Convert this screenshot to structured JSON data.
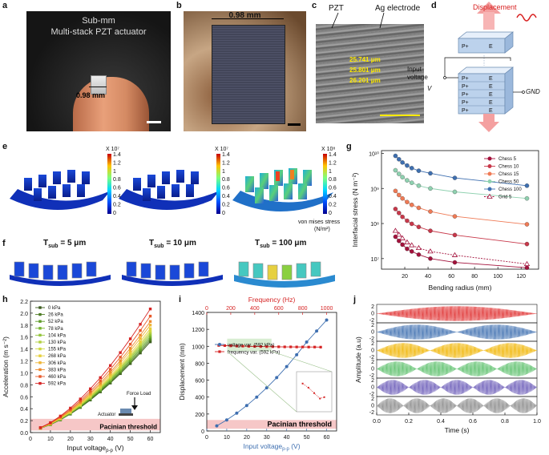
{
  "panels": {
    "a": {
      "label": "a",
      "title_line1": "Sub-mm",
      "title_line2": "Multi-stack PZT actuator",
      "scale": "0.98 mm"
    },
    "b": {
      "label": "b",
      "scale": "0.98 mm"
    },
    "c": {
      "label": "c",
      "pzt": "PZT",
      "ag": "Ag electrode",
      "t1": "25.741 μm",
      "t2": "25.801 μm",
      "t3": "26.201 μm"
    },
    "d": {
      "label": "d",
      "displacement": "Displacement",
      "input_voltage": "Input voltage",
      "v": "V",
      "gnd": "GND",
      "plates": [
        "P+",
        "P+",
        "P+",
        "P+",
        "P+",
        "P+"
      ],
      "e": "E"
    },
    "e": {
      "label": "e",
      "exp1": "X 10⁷",
      "exp2": "X 10⁷",
      "exp3": "X 10⁸",
      "ticks12": [
        "1.4",
        "1.2",
        "1",
        "0.8",
        "0.6",
        "0.4",
        "0.2",
        "0"
      ],
      "ticks3": [
        "1.4",
        "1.2",
        "1",
        "0.8",
        "0.6",
        "0.4",
        "0.2",
        "0"
      ],
      "vm": "von mises stress",
      "unit": "(N/m²)"
    },
    "f": {
      "label": "f",
      "t1": "T",
      "t1s": "sub",
      "t1v": "= 5 μm",
      "t2v": "= 10 μm",
      "t3v": "= 100 μm"
    },
    "g": {
      "label": "g"
    },
    "h": {
      "label": "h",
      "actuator": "Actuator",
      "force": "Force Load",
      "pacinian": "Pacinian threshold"
    },
    "i": {
      "label": "i",
      "pacinian": "Pacinian threshold"
    },
    "j": {
      "label": "j"
    }
  },
  "chart_data": [
    {
      "id": "g",
      "type": "line",
      "ylabel": "Interfacial stress (N m⁻²)",
      "xlabel": "Bending radius (mm)",
      "x": [
        12,
        15,
        18,
        22,
        26,
        32,
        42,
        63,
        125
      ],
      "xlim": [
        0,
        135
      ],
      "xticks": [
        "20",
        "40",
        "60",
        "80",
        "100",
        "120"
      ],
      "xtickvals": [
        20,
        40,
        60,
        80,
        100,
        120
      ],
      "yscale": "log",
      "ylim": [
        5000000,
        12000000000
      ],
      "yticks": [
        "10⁷",
        "10⁸",
        "10⁹",
        "10¹⁰"
      ],
      "ytickvals": [
        10000000,
        100000000,
        1000000000,
        10000000000
      ],
      "series": [
        {
          "name": "Chess 5",
          "color": "#a3123c",
          "values": [
            42000000,
            32000000,
            25000000,
            19000000,
            16000000,
            13000000,
            10000000,
            7800000,
            5500000
          ]
        },
        {
          "name": "Chess 10",
          "color": "#c8384a",
          "values": [
            260000000,
            200000000,
            155000000,
            120000000,
            98000000,
            80000000,
            62000000,
            47000000,
            26000000
          ]
        },
        {
          "name": "Chess 15",
          "color": "#ef7a55",
          "values": [
            850000000,
            650000000,
            520000000,
            410000000,
            340000000,
            280000000,
            220000000,
            160000000,
            95000000
          ]
        },
        {
          "name": "Chess 50",
          "color": "#8fd1b0",
          "values": [
            3300000000,
            2600000000,
            2100000000,
            1700000000,
            1450000000,
            1200000000,
            1000000000,
            800000000,
            520000000
          ]
        },
        {
          "name": "Chess 100",
          "color": "#3e6fb0",
          "values": [
            8500000000,
            6800000000,
            5500000000,
            4500000000,
            3800000000,
            3200000000,
            2700000000,
            2000000000,
            1200000000
          ]
        },
        {
          "name": "Grid 5",
          "color": "#a3123c",
          "dashed": true,
          "values": [
            62000000,
            48000000,
            38000000,
            29000000,
            24000000,
            20000000,
            16000000,
            12500000,
            7000000
          ]
        }
      ]
    },
    {
      "id": "h",
      "type": "line",
      "ylabel": "Acceleration (m s⁻²)",
      "xlabel": "Input voltage",
      "xlabel_sub": "p-p",
      "xlabel_unit": "(V)",
      "x": [
        5,
        10,
        15,
        20,
        25,
        30,
        35,
        40,
        45,
        50,
        55,
        60
      ],
      "xlim": [
        0,
        65
      ],
      "xticks": [
        "0",
        "10",
        "20",
        "30",
        "40",
        "50",
        "60"
      ],
      "xtickvals": [
        0,
        10,
        20,
        30,
        40,
        50,
        60
      ],
      "ylim": [
        0,
        2.2
      ],
      "yticks": [
        "0.0",
        "0.2",
        "0.4",
        "0.6",
        "0.8",
        "1.0",
        "1.2",
        "1.4",
        "1.6",
        "1.8",
        "2.0",
        "2.2"
      ],
      "ytickvals": [
        0,
        0.2,
        0.4,
        0.6,
        0.8,
        1.0,
        1.2,
        1.4,
        1.6,
        1.8,
        2.0,
        2.2
      ],
      "threshold": 0.23,
      "series": [
        {
          "name": "0 kPa",
          "color": "#3a5a1c",
          "k": 1.52
        },
        {
          "name": "26 kPa",
          "color": "#4c7a22",
          "k": 1.55
        },
        {
          "name": "52 kPa",
          "color": "#5e9a28",
          "k": 1.58
        },
        {
          "name": "78 kPa",
          "color": "#76b42e",
          "k": 1.61
        },
        {
          "name": "104 kPa",
          "color": "#93c43a",
          "k": 1.64
        },
        {
          "name": "130 kPa",
          "color": "#b2cf3e",
          "k": 1.67
        },
        {
          "name": "155 kPa",
          "color": "#cfd841",
          "k": 1.7
        },
        {
          "name": "268 kPa",
          "color": "#e6cf3a",
          "k": 1.74
        },
        {
          "name": "306 kPa",
          "color": "#efb534",
          "k": 1.8
        },
        {
          "name": "383 kPa",
          "color": "#ee8a2e",
          "k": 1.86
        },
        {
          "name": "460 kPa",
          "color": "#e85a2a",
          "k": 1.95
        },
        {
          "name": "592 kPa",
          "color": "#d62424",
          "k": 2.07
        }
      ]
    },
    {
      "id": "i",
      "type": "line",
      "ylabel": "Displacement (nm)",
      "xlabel": "Input voltage",
      "xlabel_sub": "p-p",
      "xlabel_unit": "(V)",
      "x2label": "Frequency (Hz)",
      "xlim": [
        0,
        65
      ],
      "xticks": [
        "0",
        "10",
        "20",
        "30",
        "40",
        "50",
        "60"
      ],
      "xtickvals": [
        0,
        10,
        20,
        30,
        40,
        50,
        60
      ],
      "x2lim": [
        0,
        1083
      ],
      "x2ticks": [
        "0",
        "200",
        "400",
        "600",
        "800",
        "1000"
      ],
      "x2tickvals": [
        0,
        200,
        400,
        600,
        800,
        1000
      ],
      "ylim": [
        0,
        1400
      ],
      "yticks": [
        "0",
        "200",
        "400",
        "600",
        "800",
        "1000",
        "1200",
        "1400"
      ],
      "ytickvals": [
        0,
        200,
        400,
        600,
        800,
        1000,
        1200,
        1400
      ],
      "threshold": 130,
      "series": [
        {
          "name": "voltage var. (592 kPa)",
          "color": "#3e6fb0",
          "x": [
            5,
            10,
            15,
            20,
            25,
            30,
            35,
            40,
            45,
            50,
            55,
            60
          ],
          "values": [
            60,
            130,
            210,
            300,
            400,
            510,
            630,
            760,
            900,
            1050,
            1180,
            1310
          ]
        },
        {
          "name": "frequency var. (592 kPa)",
          "color": "#d62424",
          "x": [
            100,
            150,
            200,
            250,
            300,
            350,
            400,
            450,
            500,
            550,
            600,
            650,
            700,
            750,
            800,
            850,
            900,
            950
          ],
          "values": [
            1010,
            1008,
            1005,
            1003,
            1002,
            1000,
            998,
            997,
            996,
            995,
            994,
            993,
            993,
            992,
            992,
            991,
            991,
            990
          ]
        }
      ]
    },
    {
      "id": "j",
      "type": "line",
      "ylabel": "Amplitude (a.u)",
      "xlabel": "Time (s)",
      "xlim": [
        0,
        1.0
      ],
      "xticks": [
        "0.0",
        "0.2",
        "0.4",
        "0.6",
        "0.8",
        "1.0"
      ],
      "xtickvals": [
        0,
        0.2,
        0.4,
        0.6,
        0.8,
        1.0
      ],
      "yticks": [
        "2",
        "0",
        "-2"
      ],
      "series": [
        {
          "color": "#e03030",
          "bursts": 1
        },
        {
          "color": "#3e6fb0",
          "bursts": 2
        },
        {
          "color": "#f0b400",
          "bursts": 3
        },
        {
          "color": "#5ac06a",
          "bursts": 4
        },
        {
          "color": "#6a5ab8",
          "bursts": 5
        },
        {
          "color": "#8a8a8a",
          "bursts": 6
        }
      ]
    }
  ]
}
